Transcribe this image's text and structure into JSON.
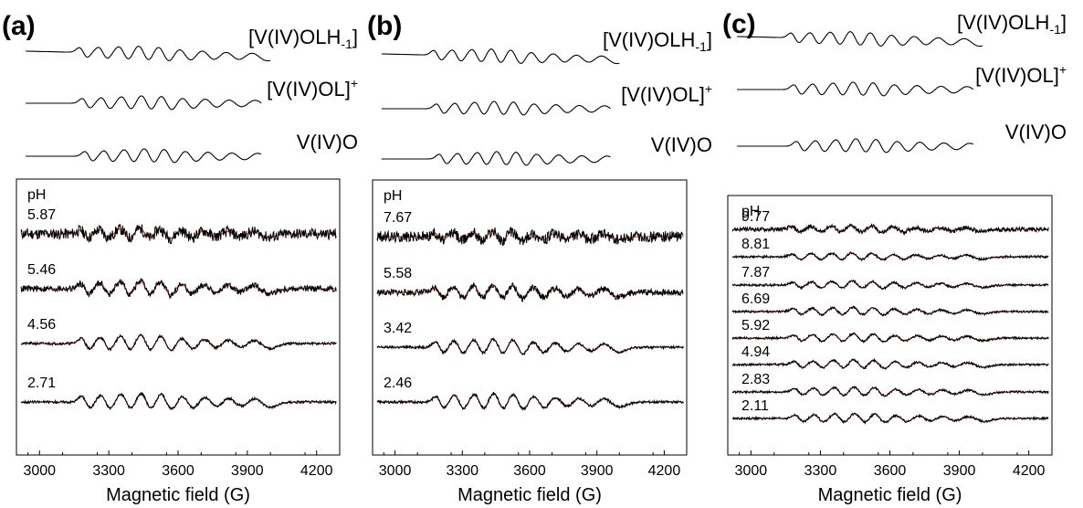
{
  "figure": {
    "x_axis_label": "Magnetic field (G)",
    "x_ticks": [
      3000,
      3300,
      3600,
      3900,
      4200
    ],
    "ph_header": "pH"
  },
  "chart_data": [
    {
      "type": "line",
      "panel": "(a)",
      "xlabel": "Magnetic field (G)",
      "xlim": [
        2900,
        4300
      ],
      "x_ticks": [
        3000,
        3300,
        3600,
        3900,
        4200
      ],
      "grid": false,
      "reference_spectra": [
        {
          "name": "[V(IV)OLH-1]",
          "label_main": "[V(IV)OLH",
          "label_sub": "-1",
          "label_sup": "",
          "label_tail": "]"
        },
        {
          "name": "[V(IV)OL]+",
          "label_main": "[V(IV)OL]",
          "label_sub": "",
          "label_sup": "+",
          "label_tail": ""
        },
        {
          "name": "V(IV)O",
          "label_main": "V(IV)O",
          "label_sub": "",
          "label_sup": "",
          "label_tail": ""
        }
      ],
      "ph_values": [
        "5.87",
        "5.46",
        "4.56",
        "2.71"
      ],
      "series_colors": {
        "experimental": "#000000",
        "simulated": "#e8302a"
      }
    },
    {
      "type": "line",
      "panel": "(b)",
      "xlabel": "Magnetic field (G)",
      "xlim": [
        2900,
        4300
      ],
      "x_ticks": [
        3000,
        3300,
        3600,
        3900,
        4200
      ],
      "grid": false,
      "reference_spectra": [
        {
          "name": "[V(IV)OLH-1]",
          "label_main": "[V(IV)OLH",
          "label_sub": "-1",
          "label_sup": "",
          "label_tail": "]"
        },
        {
          "name": "[V(IV)OL]+",
          "label_main": "[V(IV)OL]",
          "label_sub": "",
          "label_sup": "+",
          "label_tail": ""
        },
        {
          "name": "V(IV)O",
          "label_main": "V(IV)O",
          "label_sub": "",
          "label_sup": "",
          "label_tail": ""
        }
      ],
      "ph_values": [
        "7.67",
        "5.58",
        "3.42",
        "2.46"
      ],
      "series_colors": {
        "experimental": "#000000",
        "simulated": "#e8302a"
      }
    },
    {
      "type": "line",
      "panel": "(c)",
      "xlabel": "Magnetic field (G)",
      "xlim": [
        2900,
        4300
      ],
      "x_ticks": [
        3000,
        3300,
        3600,
        3900,
        4200
      ],
      "grid": false,
      "reference_spectra": [
        {
          "name": "[V(IV)OLH-1]",
          "label_main": "[V(IV)OLH",
          "label_sub": "-1",
          "label_sup": "",
          "label_tail": "]"
        },
        {
          "name": "[V(IV)OL]+",
          "label_main": "[V(IV)OL]",
          "label_sub": "",
          "label_sup": "+",
          "label_tail": ""
        },
        {
          "name": "V(IV)O",
          "label_main": "V(IV)O",
          "label_sub": "",
          "label_sup": "",
          "label_tail": ""
        }
      ],
      "ph_values": [
        "9.77",
        "8.81",
        "7.87",
        "6.69",
        "5.92",
        "4.94",
        "2.83",
        "2.11"
      ],
      "series_colors": {
        "experimental": "#000000",
        "simulated": "#e8302a"
      }
    }
  ]
}
